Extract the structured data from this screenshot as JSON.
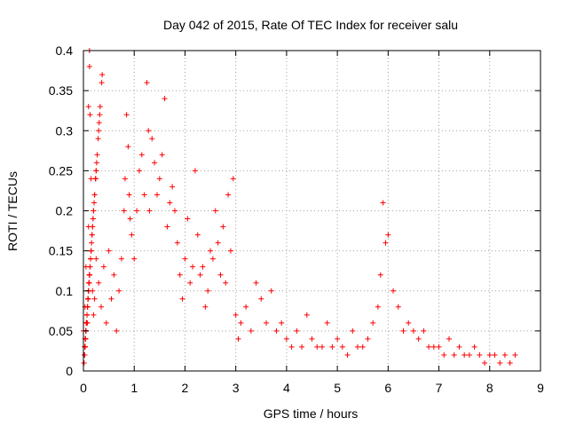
{
  "chart_data": {
    "type": "scatter",
    "title": "Day 042 of 2015, Rate Of TEC Index for receiver salu",
    "xlabel": "GPS time / hours",
    "ylabel": "ROTI / TECUs",
    "xlim": [
      0,
      9
    ],
    "ylim": [
      0,
      0.4
    ],
    "xticks": [
      0,
      1,
      2,
      3,
      4,
      5,
      6,
      7,
      8,
      9
    ],
    "xtick_labels": [
      "0",
      "1",
      "2",
      "3",
      "4",
      "5",
      "6",
      "7",
      "8",
      "9"
    ],
    "yticks": [
      0,
      0.05,
      0.1,
      0.15,
      0.2,
      0.25,
      0.3,
      0.35,
      0.4
    ],
    "ytick_labels": [
      "0",
      "0.05",
      "0.1",
      "0.15",
      "0.2",
      "0.25",
      "0.3",
      "0.35",
      "0.4"
    ],
    "grid": true,
    "marker": "+",
    "color": "#ff0000",
    "series": [
      {
        "name": "ROTI",
        "x": [
          0.0,
          0.03,
          0.05,
          0.08,
          0.1,
          0.1,
          0.12,
          0.12,
          0.13,
          0.15,
          0.18,
          0.2,
          0.22,
          0.25,
          0.3,
          0.35,
          0.4,
          0.45,
          0.5,
          0.55,
          0.6,
          0.65,
          0.7,
          0.75,
          0.8,
          0.82,
          0.85,
          0.88,
          0.9,
          0.92,
          0.95,
          1.0,
          1.05,
          1.1,
          1.15,
          1.2,
          1.25,
          1.28,
          1.3,
          1.35,
          1.4,
          1.45,
          1.5,
          1.55,
          1.6,
          1.65,
          1.7,
          1.75,
          1.8,
          1.85,
          1.9,
          1.95,
          2.0,
          2.05,
          2.1,
          2.15,
          2.2,
          2.25,
          2.3,
          2.35,
          2.4,
          2.45,
          2.5,
          2.55,
          2.6,
          2.65,
          2.7,
          2.75,
          2.8,
          2.85,
          2.9,
          2.95,
          3.0,
          3.05,
          3.1,
          3.2,
          3.3,
          3.4,
          3.5,
          3.6,
          3.7,
          3.8,
          3.9,
          4.0,
          4.1,
          4.2,
          4.3,
          4.4,
          4.5,
          4.6,
          4.7,
          4.8,
          4.9,
          5.0,
          5.1,
          5.2,
          5.3,
          5.4,
          5.5,
          5.6,
          5.7,
          5.8,
          5.85,
          5.9,
          5.95,
          6.0,
          6.1,
          6.2,
          6.3,
          6.4,
          6.5,
          6.6,
          6.7,
          6.8,
          6.9,
          7.0,
          7.1,
          7.2,
          7.3,
          7.4,
          7.5,
          7.6,
          7.7,
          7.8,
          7.9,
          8.0,
          8.1,
          8.2,
          8.3,
          8.4,
          8.5,
          0.02,
          0.06,
          0.09,
          0.11,
          0.14,
          0.2,
          0.24,
          0.31,
          0.37,
          0.3,
          0.05,
          0.03,
          0.08,
          0.12,
          0.04,
          0.1,
          0.03,
          0.15,
          0.07,
          0.18,
          0.05,
          0.11,
          0.03,
          0.09,
          0.22,
          0.26,
          0.32,
          0.2,
          0.21,
          0.07,
          0.12,
          0.04,
          0.15,
          0.17,
          0.25,
          0.08,
          0.36,
          0.22,
          0.05,
          0.29,
          0.13,
          0.19,
          0.24,
          0.27,
          0.33,
          0.07,
          0.12,
          0.2,
          0.22,
          0.16,
          0.09,
          0.04,
          0.14,
          0.19,
          0.11,
          0.06,
          0.25,
          0.17,
          0.08,
          0.13,
          0.03,
          0.1,
          0.07,
          0.14,
          0.2,
          0.06,
          0.12,
          0.18,
          0.09,
          0.22,
          0.15,
          0.24,
          0.04,
          0.02,
          0.06,
          0.08,
          0.05,
          0.11,
          0.09,
          0.04,
          0.1,
          0.03,
          0.06,
          0.04,
          0.02,
          0.05,
          0.03,
          0.07,
          0.04,
          0.02,
          0.03,
          0.06,
          0.02,
          0.04,
          0.03,
          0.02,
          0.05,
          0.03,
          0.02,
          0.04,
          0.06,
          0.08,
          0.12,
          0.2,
          0.15,
          0.05,
          0.03,
          0.06,
          0.02,
          0.04,
          0.03,
          0.02,
          0.05,
          0.03,
          0.02,
          0.03,
          0.02,
          0.04,
          0.02,
          0.03,
          0.02,
          0.01,
          0.03,
          0.02,
          0.01,
          0.02,
          0.02,
          0.01,
          0.02,
          0.01,
          0.02
        ],
        "y": [
          0.05,
          0.08,
          0.13,
          0.06,
          0.18,
          0.33,
          0.4,
          0.38,
          0.32,
          0.24,
          0.1,
          0.07,
          0.09,
          0.14,
          0.11,
          0.08,
          0.13,
          0.06,
          0.15,
          0.09,
          0.12,
          0.05,
          0.1,
          0.14,
          0.2,
          0.24,
          0.32,
          0.28,
          0.22,
          0.19,
          0.17,
          0.14,
          0.2,
          0.25,
          0.27,
          0.22,
          0.36,
          0.3,
          0.2,
          0.29,
          0.26,
          0.22,
          0.24,
          0.27,
          0.34,
          0.18,
          0.21,
          0.23,
          0.2,
          0.16,
          0.12,
          0.09,
          0.14,
          0.19,
          0.11,
          0.13,
          0.25,
          0.17,
          0.12,
          0.13,
          0.08,
          0.1,
          0.15,
          0.14,
          0.2,
          0.16,
          0.12,
          0.18,
          0.11,
          0.22,
          0.15,
          0.24,
          0.07,
          0.04,
          0.06,
          0.08,
          0.05,
          0.11,
          0.09,
          0.06,
          0.1,
          0.05,
          0.06,
          0.04,
          0.03,
          0.05,
          0.03,
          0.07,
          0.04,
          0.03,
          0.03,
          0.06,
          0.03,
          0.04,
          0.03,
          0.02,
          0.05,
          0.03,
          0.03,
          0.04,
          0.06,
          0.08,
          0.12,
          0.21,
          0.16,
          0.17,
          0.1,
          0.08,
          0.05,
          0.06,
          0.05,
          0.04,
          0.05,
          0.03,
          0.03,
          0.03,
          0.02,
          0.04,
          0.02,
          0.03,
          0.02,
          0.02,
          0.03,
          0.02,
          0.01,
          0.02,
          0.02,
          0.01,
          0.02,
          0.01,
          0.02,
          0.02,
          0.06,
          0.09,
          0.11,
          0.14,
          0.2,
          0.24,
          0.31,
          0.37,
          0.3,
          0.05,
          0.03,
          0.08,
          0.12,
          0.04,
          0.1,
          0.03,
          0.15,
          0.07,
          0.18,
          0.05,
          0.11,
          0.03,
          0.09,
          0.22,
          0.26,
          0.32,
          0.2,
          0.21,
          0.07,
          0.12,
          0.04,
          0.15,
          0.17,
          0.25,
          0.08,
          0.36,
          0.22,
          0.05,
          0.29,
          0.13,
          0.19,
          0.24,
          0.27,
          0.33,
          0.07,
          0.12,
          0.2,
          0.22,
          0.16,
          0.09,
          0.04,
          0.14,
          0.19,
          0.11,
          0.06,
          0.25,
          0.17,
          0.08,
          0.13,
          0.03,
          0.1,
          0.07,
          0.14,
          0.2,
          0.06,
          0.12,
          0.18,
          0.09,
          0.22,
          0.15,
          0.24,
          0.04,
          0.02,
          0.06,
          0.08,
          0.05,
          0.11,
          0.09,
          0.04,
          0.1,
          0.03,
          0.06,
          0.04,
          0.02,
          0.05,
          0.03,
          0.07,
          0.04,
          0.02,
          0.03,
          0.06,
          0.02,
          0.04,
          0.03,
          0.02,
          0.05,
          0.03,
          0.02,
          0.04,
          0.06,
          0.08,
          0.12,
          0.2,
          0.15,
          0.05,
          0.03,
          0.06,
          0.02,
          0.04,
          0.03,
          0.02,
          0.05,
          0.03,
          0.02,
          0.03,
          0.02,
          0.04,
          0.02,
          0.03,
          0.02,
          0.01,
          0.03,
          0.02,
          0.01,
          0.02,
          0.02,
          0.01,
          0.02,
          0.01,
          0.02
        ]
      }
    ]
  }
}
